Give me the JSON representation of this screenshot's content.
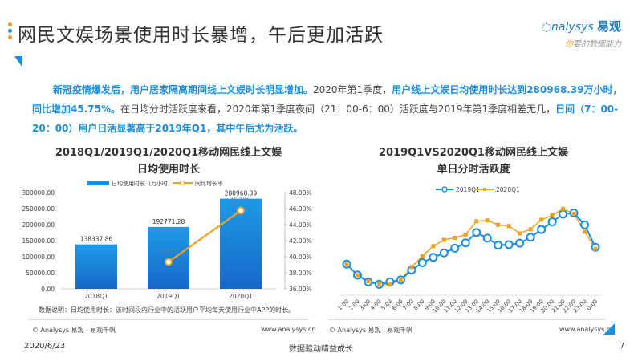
{
  "header": {
    "title": "网民文娱场景使用时长暴增，午后更加活跃",
    "logo_text": "nalysys",
    "logo_cn": "易观",
    "logo_slogan_first": "你",
    "logo_slogan_rest": "要的数据能力"
  },
  "paragraph": {
    "s1": "新冠疫情爆发后，用户居家隔离期间线上文娱时长明显增加。",
    "s2": "2020年第1季度，",
    "s3": "用户线上文娱日均使用时长达到280968.39万小时，同比增加45.75%。",
    "s4": "在日均分时活跃度来看，2020年第1季度夜间（21：00-6：00）活跃度与2019年第1季度相差无几，",
    "s5": "日间（7：00-20：00）用户日活显著高于2019年Q1，其中午后尤为活跃。"
  },
  "chart_data": [
    {
      "type": "bar",
      "title": "2018Q1/2019Q1/2020Q1移动网民线上文娱",
      "subtitle": "日均使用时长",
      "categories": [
        "2018Q1",
        "2019Q1",
        "2020Q1"
      ],
      "series": [
        {
          "name": "日均使用时长（万小时）",
          "type": "bar",
          "values": [
            138337.86,
            192771.28,
            280968.39
          ],
          "labels": [
            "138337.86",
            "192771.28",
            "280968.39"
          ],
          "axis": "left"
        },
        {
          "name": "同比增长率",
          "type": "line",
          "values": [
            null,
            39.35,
            45.75
          ],
          "labels": [
            "",
            "39.35%",
            "45.75%"
          ],
          "axis": "right"
        }
      ],
      "ylim": [
        0,
        300000
      ],
      "yticks": [
        "0.00",
        "50000.00",
        "100000.00",
        "150000.00",
        "200000.00",
        "250000.00",
        "300000.00"
      ],
      "y2lim": [
        36,
        48
      ],
      "y2ticks": [
        "36.00%",
        "38.00%",
        "40.00%",
        "42.00%",
        "44.00%",
        "46.00%",
        "48.00%"
      ],
      "legend": "top",
      "note": "数据说明：日均使用时长：该时间段内行业中的活跃用户平均每天使用行业中APP的时长。",
      "colors": {
        "bar": "#1a8ee0",
        "line": "#f0a020"
      }
    },
    {
      "type": "line",
      "title": "2019Q1VS2020Q1移动网民线上文娱",
      "subtitle": "单日分时活跃度",
      "categories": [
        "1:00",
        "2:00",
        "3:00",
        "4:00",
        "5:00",
        "6:00",
        "7:00",
        "8:00",
        "9:00",
        "10:00",
        "11:00",
        "12:00",
        "13:00",
        "14:00",
        "15:00",
        "16:00",
        "17:00",
        "18:00",
        "19:00",
        "20:00",
        "21:00",
        "22:00",
        "23:00",
        "0:00"
      ],
      "series": [
        {
          "name": "2019Q1",
          "values": [
            105,
            68,
            45,
            37,
            45,
            52,
            85,
            110,
            128,
            143,
            159,
            177,
            212,
            193,
            169,
            171,
            176,
            196,
            222,
            248,
            274,
            278,
            238,
            162
          ],
          "color": "#1a8ee0"
        },
        {
          "name": "2020Q1",
          "values": [
            105,
            68,
            47,
            37,
            36,
            52,
            95,
            132,
            166,
            187,
            194,
            205,
            250,
            253,
            238,
            234,
            209,
            223,
            255,
            270,
            292,
            275,
            215,
            157
          ],
          "color": "#f0a020"
        }
      ],
      "ylim": [
        0,
        320
      ],
      "ylabel": "",
      "legend": "top",
      "note": "relative index, no y axis shown"
    }
  ],
  "footers": {
    "left_source": "© Analysys 易观 · 易观千帆",
    "left_url": "www.analysys.cn",
    "right_source": "© Analysys 易观 · 易观千帆",
    "right_url": "www.analysys.cn"
  },
  "bottom": {
    "date": "2020/6/23",
    "slogan": "数据驱动精益成长",
    "page": "7"
  }
}
